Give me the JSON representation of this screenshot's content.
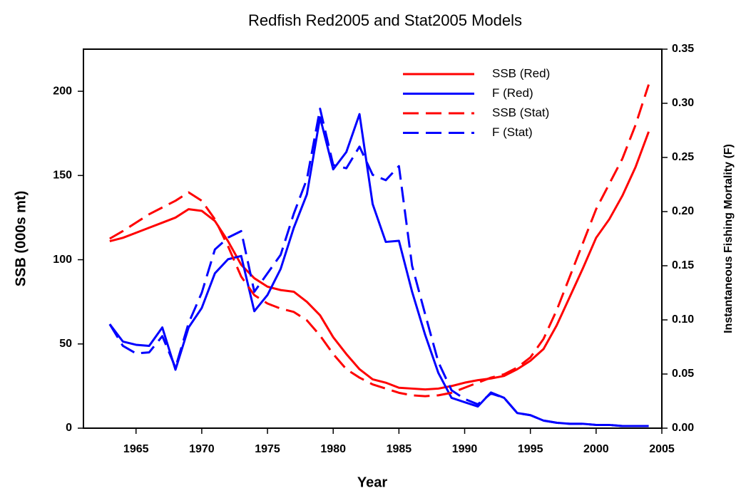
{
  "chart_data": {
    "type": "line",
    "title": "Redfish Red2005 and Stat2005 Models",
    "x_label": "Year",
    "y_label": "SSB (000s mt)",
    "y2_label": "Instantaneous Fishing Mortality (F)",
    "x": [
      1963,
      1964,
      1965,
      1966,
      1967,
      1968,
      1969,
      1970,
      1971,
      1972,
      1973,
      1974,
      1975,
      1976,
      1977,
      1978,
      1979,
      1980,
      1981,
      1982,
      1983,
      1984,
      1985,
      1986,
      1987,
      1988,
      1989,
      1990,
      1991,
      1992,
      1993,
      1994,
      1995,
      1996,
      1997,
      1998,
      1999,
      2000,
      2001,
      2002,
      2003,
      2004
    ],
    "series": [
      {
        "name": "SSB (Red)",
        "color": "#ff0000",
        "dashed": false,
        "values": [
          111,
          113,
          116,
          119,
          122,
          125,
          130,
          129,
          123,
          111,
          97,
          89,
          84,
          82,
          81,
          75,
          67,
          54,
          44,
          35,
          29,
          27,
          24,
          23.5,
          23,
          23.5,
          25,
          27,
          28.5,
          29.5,
          31,
          35,
          40,
          47,
          61,
          78,
          95,
          113,
          124,
          138,
          155,
          176
        ]
      },
      {
        "name": "F (Red)",
        "color": "#0000ff",
        "dashed": false,
        "axis": "y2",
        "values": [
          0.096,
          0.08,
          0.077,
          0.076,
          0.093,
          0.054,
          0.093,
          0.111,
          0.143,
          0.156,
          0.159,
          0.108,
          0.123,
          0.147,
          0.185,
          0.216,
          0.287,
          0.239,
          0.255,
          0.29,
          0.207,
          0.172,
          0.173,
          0.126,
          0.086,
          0.051,
          0.028,
          0.024,
          0.02,
          0.033,
          0.028,
          0.014,
          0.012,
          0.007,
          0.005,
          0.004,
          0.004,
          0.003,
          0.003,
          0.002,
          0.002,
          0.002
        ]
      },
      {
        "name": "SSB (Stat)",
        "color": "#ff0000",
        "dashed": true,
        "values": [
          112.5,
          117,
          122,
          127,
          131,
          135,
          140,
          135,
          124,
          108,
          90,
          79,
          74,
          71,
          69,
          64,
          55,
          44,
          35,
          30,
          26,
          23.5,
          21,
          19.5,
          19,
          19.5,
          21,
          24,
          27,
          30,
          32,
          36,
          42,
          53,
          70,
          90,
          110,
          130,
          145,
          160,
          180,
          204
        ]
      },
      {
        "name": "F (Stat)",
        "color": "#0000ff",
        "dashed": true,
        "axis": "y2",
        "values": [
          0.096,
          0.076,
          0.069,
          0.07,
          0.085,
          0.056,
          0.097,
          0.125,
          0.165,
          0.176,
          0.182,
          0.126,
          0.143,
          0.16,
          0.198,
          0.23,
          0.295,
          0.243,
          0.24,
          0.26,
          0.234,
          0.229,
          0.242,
          0.15,
          0.105,
          0.061,
          0.035,
          0.027,
          0.022,
          0.032,
          0.028,
          0.014,
          0.012,
          0.007,
          0.005,
          0.004,
          0.004,
          0.003,
          0.003,
          0.002,
          0.002,
          0.002
        ]
      }
    ],
    "xlim": [
      1961,
      2005
    ],
    "xticks": [
      1965,
      1970,
      1975,
      1980,
      1985,
      1990,
      1995,
      2000,
      2005
    ],
    "ylim": [
      0,
      225
    ],
    "yticks": [
      0,
      50,
      100,
      150,
      200
    ],
    "y2lim": [
      0,
      0.35
    ],
    "y2ticks": [
      {
        "value": 0,
        "label": "0.00"
      },
      {
        "value": 0.05,
        "label": "0.05"
      },
      {
        "value": 0.1,
        "label": "0.10"
      },
      {
        "value": 0.15,
        "label": "0.15"
      },
      {
        "value": 0.2,
        "label": "0.20"
      },
      {
        "value": 0.25,
        "label": "0.25"
      },
      {
        "value": 0.3,
        "label": "0.30"
      },
      {
        "value": 0.35,
        "label": "0.35"
      }
    ],
    "legend": "top-right",
    "grid": false
  }
}
